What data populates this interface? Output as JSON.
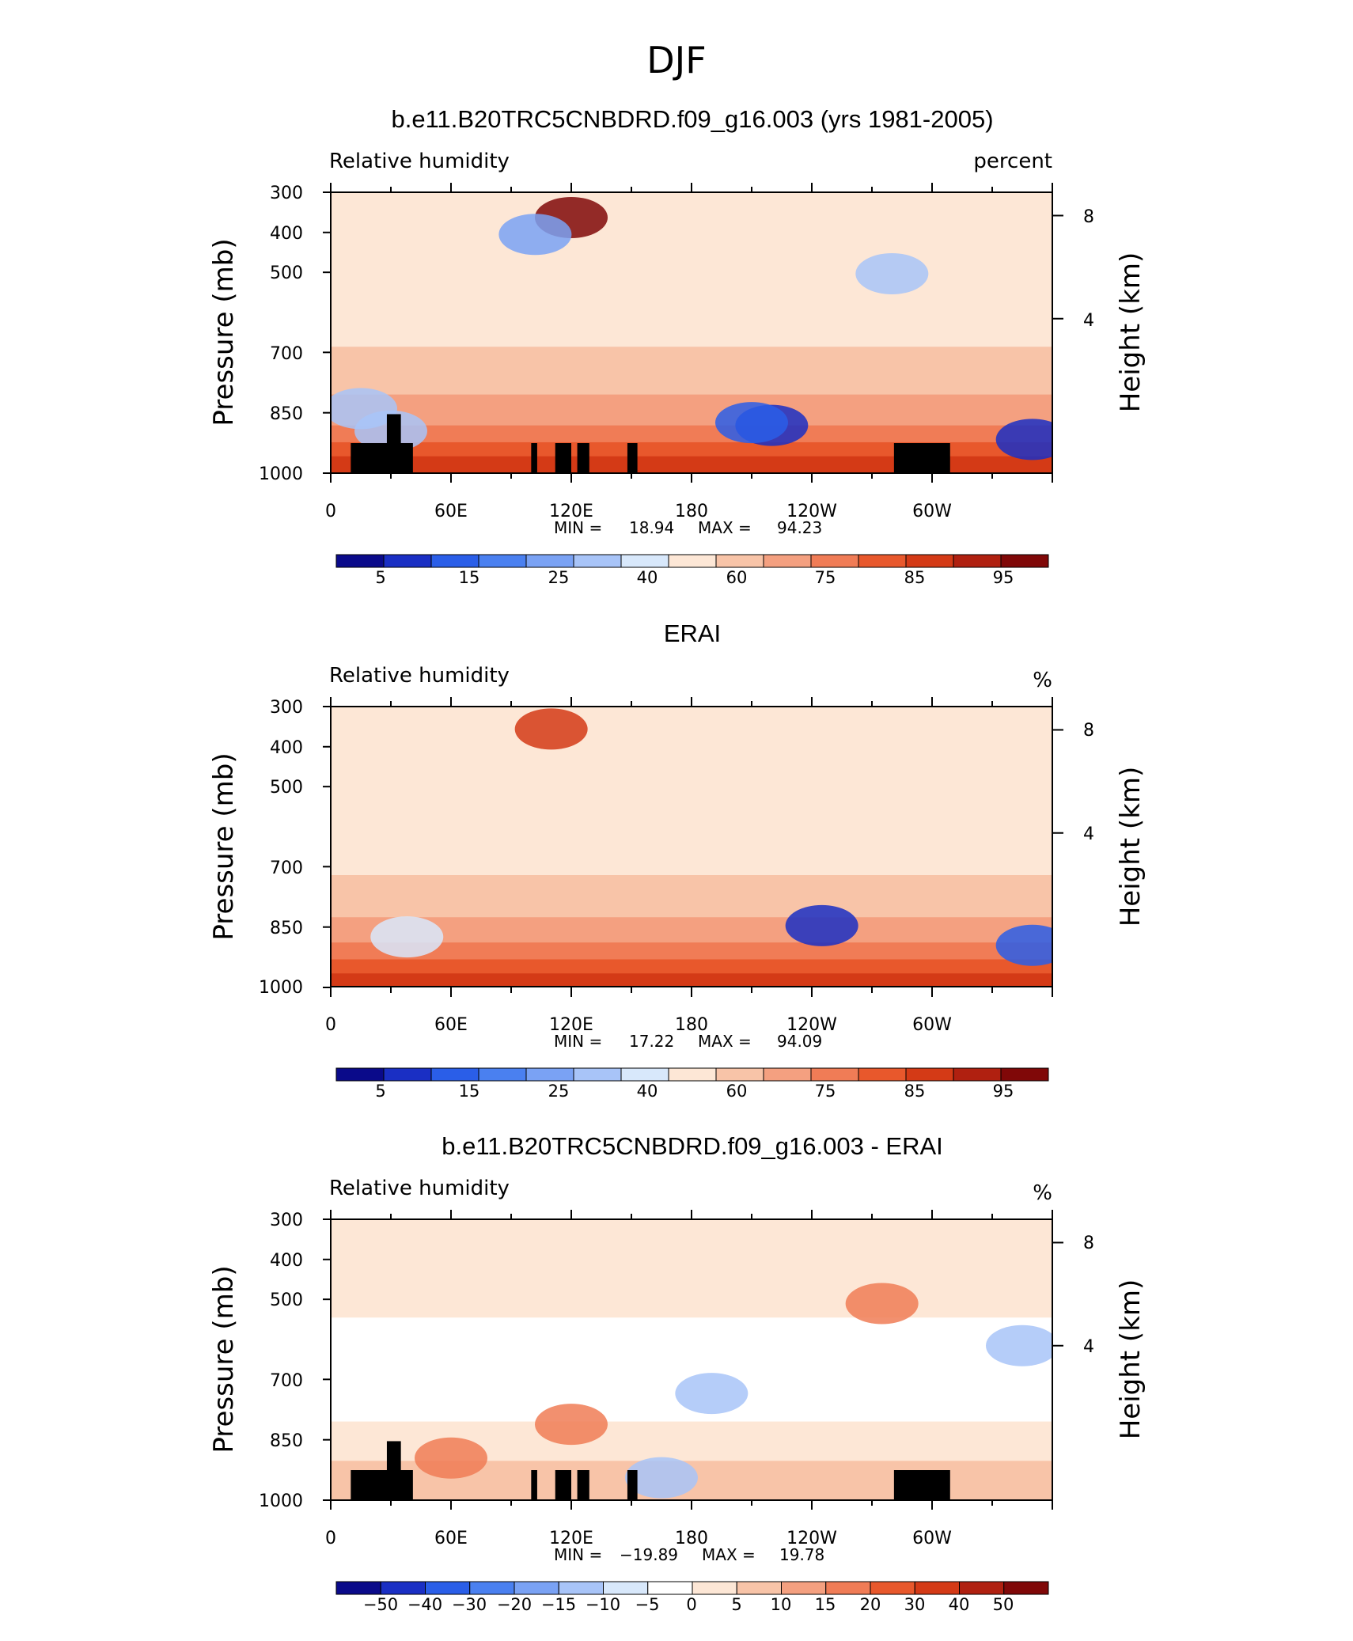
{
  "main_title": "DJF",
  "colors": {
    "relhum_scale": [
      "#0a0a8a",
      "#1a2fc4",
      "#2a5ee8",
      "#4a80f0",
      "#7aa2f4",
      "#a8c4f8",
      "#d8e8fb",
      "#fde7d6",
      "#f8c4a8",
      "#f4a080",
      "#f07c56",
      "#e8582c",
      "#d43a16",
      "#b02010",
      "#800808"
    ],
    "diff_scale": [
      "#0a0a8a",
      "#1a2fc4",
      "#2a5ee8",
      "#4a80f0",
      "#7aa2f4",
      "#a8c4f8",
      "#d8e8fb",
      "#ffffff",
      "#fde7d6",
      "#f8c4a8",
      "#f4a080",
      "#f07c56",
      "#e8582c",
      "#d43a16",
      "#b02010",
      "#800808"
    ],
    "terrain": "#000000"
  },
  "chart_data": [
    {
      "type": "heatmap",
      "title": "b.e11.B20TRC5CNBDRD.f09_g16.003 (yrs 1981-2005)",
      "left_label": "Relative humidity",
      "right_label": "percent",
      "ylabel": "Pressure (mb)",
      "y2label": "Height (km)",
      "x_ticks": [
        "0",
        "60E",
        "120E",
        "180",
        "120W",
        "60W"
      ],
      "y_ticks": [
        "300",
        "400",
        "500",
        "700",
        "850",
        "1000"
      ],
      "y2_ticks": [
        "8",
        "4"
      ],
      "min_label": "MIN =",
      "min_value": "18.94",
      "max_label": "MAX =",
      "max_value": "94.23",
      "colorbar_labels": [
        "5",
        "15",
        "25",
        "40",
        "60",
        "75",
        "85",
        "95"
      ],
      "features": [
        {
          "level": 14,
          "x": 120,
          "y": 0.09
        },
        {
          "level": 5,
          "x": 30,
          "y": 0.85
        },
        {
          "level": 5,
          "x": 15,
          "y": 0.77
        },
        {
          "level": 1,
          "x": 220,
          "y": 0.83
        },
        {
          "level": 2,
          "x": 210,
          "y": 0.82
        },
        {
          "level": 1,
          "x": 350,
          "y": 0.88
        },
        {
          "level": 5,
          "x": 280,
          "y": 0.29
        },
        {
          "level": 4,
          "x": 102,
          "y": 0.15
        }
      ]
    },
    {
      "type": "heatmap",
      "title": "ERAI",
      "left_label": "Relative humidity",
      "right_label": "%",
      "ylabel": "Pressure (mb)",
      "y2label": "Height (km)",
      "x_ticks": [
        "0",
        "60E",
        "120E",
        "180",
        "120W",
        "60W"
      ],
      "y_ticks": [
        "300",
        "400",
        "500",
        "700",
        "850",
        "1000"
      ],
      "y2_ticks": [
        "8",
        "4"
      ],
      "min_label": "MIN =",
      "min_value": "17.22",
      "max_label": "MAX =",
      "max_value": "94.09",
      "colorbar_labels": [
        "5",
        "15",
        "25",
        "40",
        "60",
        "75",
        "85",
        "95"
      ],
      "features": [
        {
          "level": 12,
          "x": 110,
          "y": 0.08
        },
        {
          "level": 6,
          "x": 38,
          "y": 0.82
        },
        {
          "level": 1,
          "x": 245,
          "y": 0.78
        },
        {
          "level": 2,
          "x": 350,
          "y": 0.85
        }
      ]
    },
    {
      "type": "heatmap",
      "title": "b.e11.B20TRC5CNBDRD.f09_g16.003 - ERAI",
      "left_label": "Relative humidity",
      "right_label": "%",
      "ylabel": "Pressure (mb)",
      "y2label": "Height (km)",
      "x_ticks": [
        "0",
        "60E",
        "120E",
        "180",
        "120W",
        "60W"
      ],
      "y_ticks": [
        "300",
        "400",
        "500",
        "700",
        "850",
        "1000"
      ],
      "y2_ticks": [
        "8",
        "4"
      ],
      "min_label": "MIN =",
      "min_value": "−19.89",
      "max_label": "MAX =",
      "max_value": "19.78",
      "colorbar_labels": [
        "−50",
        "−40",
        "−30",
        "−20",
        "−15",
        "−10",
        "−5",
        "0",
        "5",
        "10",
        "15",
        "20",
        "30",
        "40",
        "50"
      ],
      "features": [
        {
          "level": 11,
          "x": 60,
          "y": 0.85
        },
        {
          "level": 11,
          "x": 120,
          "y": 0.73
        },
        {
          "level": 5,
          "x": 165,
          "y": 0.92
        },
        {
          "level": 5,
          "x": 190,
          "y": 0.62
        },
        {
          "level": 11,
          "x": 275,
          "y": 0.3
        },
        {
          "level": 5,
          "x": 345,
          "y": 0.45
        }
      ]
    }
  ],
  "terrain_blocks": [
    {
      "lon_start": 10,
      "lon_end": 30,
      "height": 0.107
    },
    {
      "lon_start": 28,
      "lon_end": 35,
      "height": 0.21
    },
    {
      "lon_start": 33,
      "lon_end": 41,
      "height": 0.107
    },
    {
      "lon_start": 100,
      "lon_end": 103,
      "height": 0.107
    },
    {
      "lon_start": 112,
      "lon_end": 120,
      "height": 0.107
    },
    {
      "lon_start": 123,
      "lon_end": 129,
      "height": 0.107
    },
    {
      "lon_start": 148,
      "lon_end": 153,
      "height": 0.107
    },
    {
      "lon_start": 281,
      "lon_end": 309,
      "height": 0.107
    }
  ]
}
